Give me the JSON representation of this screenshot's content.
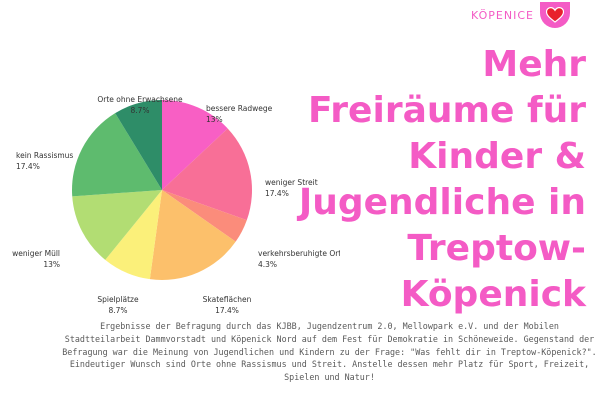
{
  "brand": {
    "label": "KÖPENICE",
    "icon": "heart-icon",
    "accent": "#f45bc5"
  },
  "headline": [
    "Mehr",
    "Freiräume für",
    "Kinder &",
    "Jugendliche in",
    "Treptow-",
    "Köpenick"
  ],
  "chart_data": {
    "type": "pie",
    "categories": [
      "bessere Radwege",
      "weniger Streit",
      "verkehrsberuhigte Orte",
      "Skateflächen",
      "Spielplätze",
      "weniger Müll",
      "kein Rassismus",
      "Orte ohne Erwachsene"
    ],
    "values": [
      13,
      17.4,
      4.3,
      17.4,
      8.7,
      13,
      17.4,
      8.7
    ],
    "value_labels": [
      "13%",
      "17.4%",
      "4.3%",
      "17.4%",
      "8.7%",
      "13%",
      "17.4%",
      "8.7%"
    ],
    "colors": [
      "#f85fc4",
      "#f86f97",
      "#fb8c7b",
      "#fcc06b",
      "#fbf07a",
      "#b2dd73",
      "#5ebb6e",
      "#2e8d68"
    ],
    "title": "",
    "legend": "none"
  },
  "caption": "Ergebnisse der Befragung durch das KJBB, Jugendzentrum 2.0, Mellowpark e.V. und der Mobilen Stadtteilarbeit Dammvorstadt und Köpenick Nord auf dem Fest für Demokratie in Schöneweide. Gegenstand der Befragung war die Meinung von Jugendlichen und Kindern zu der Frage: \"Was fehlt dir in Treptow-Köpenick?\". Eindeutiger Wunsch sind Orte ohne Rassismus und Streit. Anstelle dessen mehr Platz für Sport, Freizeit, Spielen und Natur!"
}
